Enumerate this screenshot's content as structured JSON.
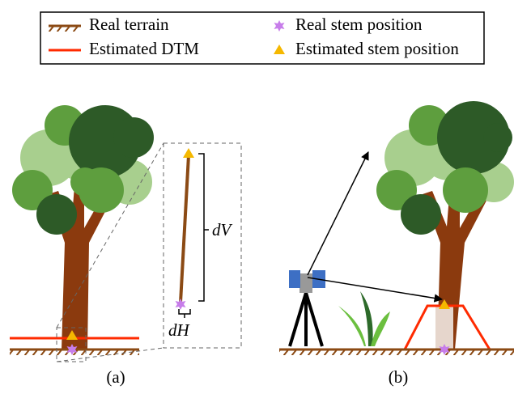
{
  "legend": {
    "items": [
      "Real terrain",
      "Estimated DTM",
      "Real stem position",
      "Estimated stem position"
    ]
  },
  "inset": {
    "vertical": "dV",
    "horizontal": "dH"
  },
  "captions": [
    "(a)",
    "(b)"
  ]
}
